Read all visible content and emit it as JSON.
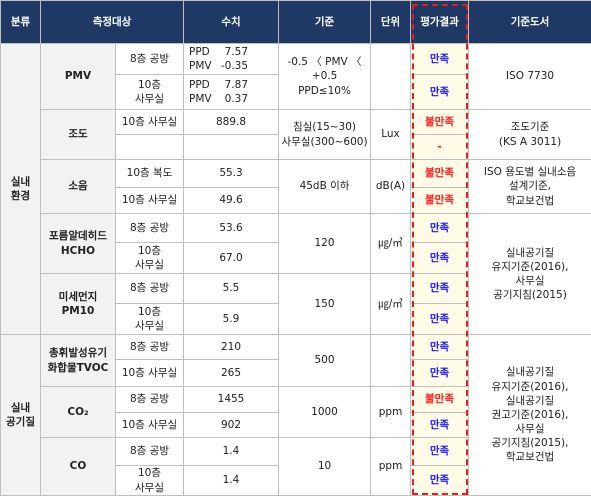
{
  "header": {
    "category": "분류",
    "target": "측정대상",
    "value": "수치",
    "standard": "기준",
    "unit": "단위",
    "result": "평가결과",
    "reference": "기준도서"
  },
  "sections": [
    {
      "name": "실내\n환경",
      "groups": [
        {
          "reference": "ISO 7730",
          "items": [
            {
              "name": "PMV",
              "standard": "-0.5 〈 PMV 〈 +0.5\nPPD≤10%",
              "rows": [
                {
                  "location": "8층 공방",
                  "values": [
                    {
                      "label": "PPD",
                      "value": "7.57"
                    },
                    {
                      "label": "PMV",
                      "value": "-0.35"
                    }
                  ],
                  "result": "만족"
                },
                {
                  "location": "10층\n사무실",
                  "values": [
                    {
                      "label": "PPD",
                      "value": "7.87"
                    },
                    {
                      "label": "PMV",
                      "value": "0.37"
                    }
                  ],
                  "result": "만족"
                }
              ]
            }
          ]
        },
        {
          "reference": "조도기준\n(KS A 3011)",
          "items": [
            {
              "name": "조도",
              "standard": "침실(15~30)\n사무실(300~600)",
              "unit": "Lux",
              "rows": [
                {
                  "location": "10층 사무실",
                  "value": "889.8",
                  "result": "불만족"
                },
                {
                  "result": "-"
                }
              ]
            }
          ]
        },
        {
          "reference": "ISO 용도별 실내소음\n설계기준,\n학교보건법",
          "items": [
            {
              "name": "소음",
              "standard": "45dB 이하",
              "unit": "dB(A)",
              "rows": [
                {
                  "location": "10층 복도",
                  "value": "55.3",
                  "result": "불만족"
                },
                {
                  "location": "10층 사무실",
                  "value": "49.6",
                  "result": "불만족"
                }
              ]
            }
          ]
        },
        {
          "reference": "실내공기질\n유지기준(2016),\n사무실\n공기지침(2015)",
          "items": [
            {
              "name": "포름알데히드\nHCHO",
              "standard": "120",
              "unit": "㎍/㎥",
              "rows": [
                {
                  "location": "8층 공방",
                  "value": "53.6",
                  "result": "만족"
                },
                {
                  "location": "10층\n사무실",
                  "value": "67.0",
                  "result": "만족"
                }
              ]
            },
            {
              "name": "미세먼지\nPM10",
              "standard": "150",
              "unit": "㎍/㎥",
              "rows": [
                {
                  "location": "8층 공방",
                  "value": "5.5",
                  "result": "만족"
                },
                {
                  "location": "10층\n사무실",
                  "value": "5.9",
                  "result": "만족"
                }
              ]
            }
          ]
        }
      ]
    },
    {
      "name": "실내\n공기질",
      "groups": [
        {
          "reference": "실내공기질\n유지기준(2016),\n실내공기질\n권고기준(2016),\n사무실\n공기지침(2015),\n학교보건법",
          "items": [
            {
              "name": "총휘발성유기\n화합물TVOC",
              "standard": "500",
              "rows": [
                {
                  "location": "8층 공방",
                  "value": "210",
                  "result": "만족"
                },
                {
                  "location": "10층 사무실",
                  "value": "265",
                  "result": "만족"
                }
              ]
            },
            {
              "name": "CO₂",
              "standard": "1000",
              "unit": "ppm",
              "rows": [
                {
                  "location": "8층 공방",
                  "value": "1455",
                  "result": "불만족"
                },
                {
                  "location": "10층 사무실",
                  "value": "902",
                  "result": "만족"
                }
              ]
            },
            {
              "name": "CO",
              "standard": "10",
              "unit": "ppm",
              "rows": [
                {
                  "location": "8층 공방",
                  "value": "1.4",
                  "result": "만족"
                },
                {
                  "location": "10층\n사무실",
                  "value": "1.4",
                  "result": "만족"
                }
              ]
            }
          ]
        }
      ]
    }
  ]
}
